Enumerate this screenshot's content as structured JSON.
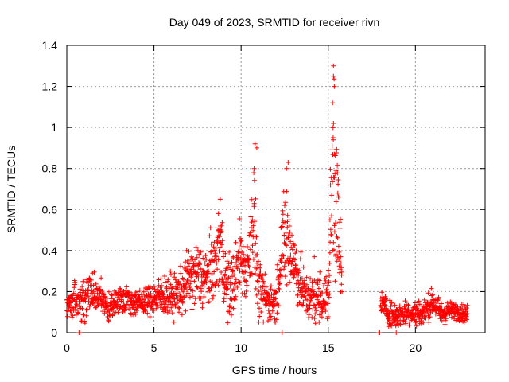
{
  "chart_data": {
    "type": "scatter",
    "title": "Day 049 of 2023, SRMTID for receiver rivn",
    "xlabel": "GPS time / hours",
    "ylabel": "SRMTID / TECUs",
    "xlim": [
      0,
      24
    ],
    "ylim": [
      0,
      1.4
    ],
    "xticks": [
      0,
      5,
      10,
      15,
      20
    ],
    "xtick_labels": [
      "0",
      "5",
      "10",
      "15",
      "20"
    ],
    "yticks": [
      0,
      0.2,
      0.4,
      0.6,
      0.8,
      1,
      1.2,
      1.4
    ],
    "ytick_labels": [
      "0",
      "0.2",
      "0.4",
      "0.6",
      "0.8",
      "1",
      "1.2",
      "1.4"
    ],
    "grid": true,
    "marker": "+",
    "series": [
      {
        "name": "SRMTID",
        "color": "#ff0000",
        "seed": 4927,
        "envelope": [
          [
            0.0,
            0.15,
            0.03
          ],
          [
            0.5,
            0.14,
            0.04
          ],
          [
            1.0,
            0.15,
            0.05
          ],
          [
            1.3,
            0.2,
            0.05
          ],
          [
            2.0,
            0.16,
            0.04
          ],
          [
            2.5,
            0.11,
            0.03
          ],
          [
            3.0,
            0.17,
            0.03
          ],
          [
            3.5,
            0.17,
            0.03
          ],
          [
            4.0,
            0.14,
            0.03
          ],
          [
            4.5,
            0.15,
            0.03
          ],
          [
            5.0,
            0.17,
            0.04
          ],
          [
            5.5,
            0.18,
            0.05
          ],
          [
            6.0,
            0.18,
            0.05
          ],
          [
            6.5,
            0.19,
            0.05
          ],
          [
            7.0,
            0.27,
            0.07
          ],
          [
            7.5,
            0.28,
            0.08
          ],
          [
            8.0,
            0.26,
            0.08
          ],
          [
            8.5,
            0.33,
            0.08
          ],
          [
            8.8,
            0.45,
            0.1
          ],
          [
            9.2,
            0.2,
            0.08
          ],
          [
            9.6,
            0.25,
            0.08
          ],
          [
            10.0,
            0.38,
            0.08
          ],
          [
            10.3,
            0.28,
            0.06
          ],
          [
            10.7,
            0.58,
            0.15
          ],
          [
            11.0,
            0.2,
            0.07
          ],
          [
            11.5,
            0.16,
            0.05
          ],
          [
            12.0,
            0.15,
            0.05
          ],
          [
            12.3,
            0.4,
            0.08
          ],
          [
            12.6,
            0.46,
            0.15
          ],
          [
            13.0,
            0.36,
            0.08
          ],
          [
            13.5,
            0.2,
            0.06
          ],
          [
            14.0,
            0.16,
            0.05
          ],
          [
            14.5,
            0.17,
            0.06
          ],
          [
            15.0,
            0.17,
            0.06
          ],
          [
            15.3,
            0.9,
            0.3
          ],
          [
            15.6,
            0.45,
            0.15
          ],
          [
            15.8,
            0.2,
            0.06
          ]
        ],
        "gap": [
          15.8,
          18.0
        ],
        "envelope2": [
          [
            18.0,
            0.15,
            0.03
          ],
          [
            18.5,
            0.09,
            0.03
          ],
          [
            19.0,
            0.08,
            0.03
          ],
          [
            19.5,
            0.1,
            0.03
          ],
          [
            20.0,
            0.09,
            0.03
          ],
          [
            20.5,
            0.1,
            0.03
          ],
          [
            21.0,
            0.15,
            0.03
          ],
          [
            21.5,
            0.09,
            0.03
          ],
          [
            22.0,
            0.11,
            0.02
          ],
          [
            22.5,
            0.1,
            0.02
          ],
          [
            23.0,
            0.09,
            0.02
          ]
        ],
        "spikes": [
          [
            8.8,
            0.65
          ],
          [
            10.8,
            0.92
          ],
          [
            10.9,
            0.9
          ],
          [
            12.7,
            0.83
          ],
          [
            12.6,
            0.8
          ],
          [
            15.3,
            1.3
          ],
          [
            15.3,
            1.25
          ],
          [
            15.35,
            1.2
          ],
          [
            15.25,
            1.12
          ],
          [
            15.3,
            1.02
          ],
          [
            15.28,
            0.95
          ],
          [
            15.35,
            0.87
          ],
          [
            15.45,
            0.79
          ],
          [
            15.55,
            0.68
          ],
          [
            15.6,
            0.66
          ],
          [
            12.5,
            0.62
          ],
          [
            10.75,
            0.8
          ],
          [
            8.7,
            0.58
          ],
          [
            14.2,
            0.37
          ],
          [
            15.1,
            0.55
          ]
        ],
        "floor_points": [
          [
            0.7,
            0
          ],
          [
            0.75,
            0
          ],
          [
            12.35,
            0
          ],
          [
            17.9,
            0
          ],
          [
            17.95,
            0
          ],
          [
            18.9,
            0
          ]
        ]
      }
    ]
  }
}
